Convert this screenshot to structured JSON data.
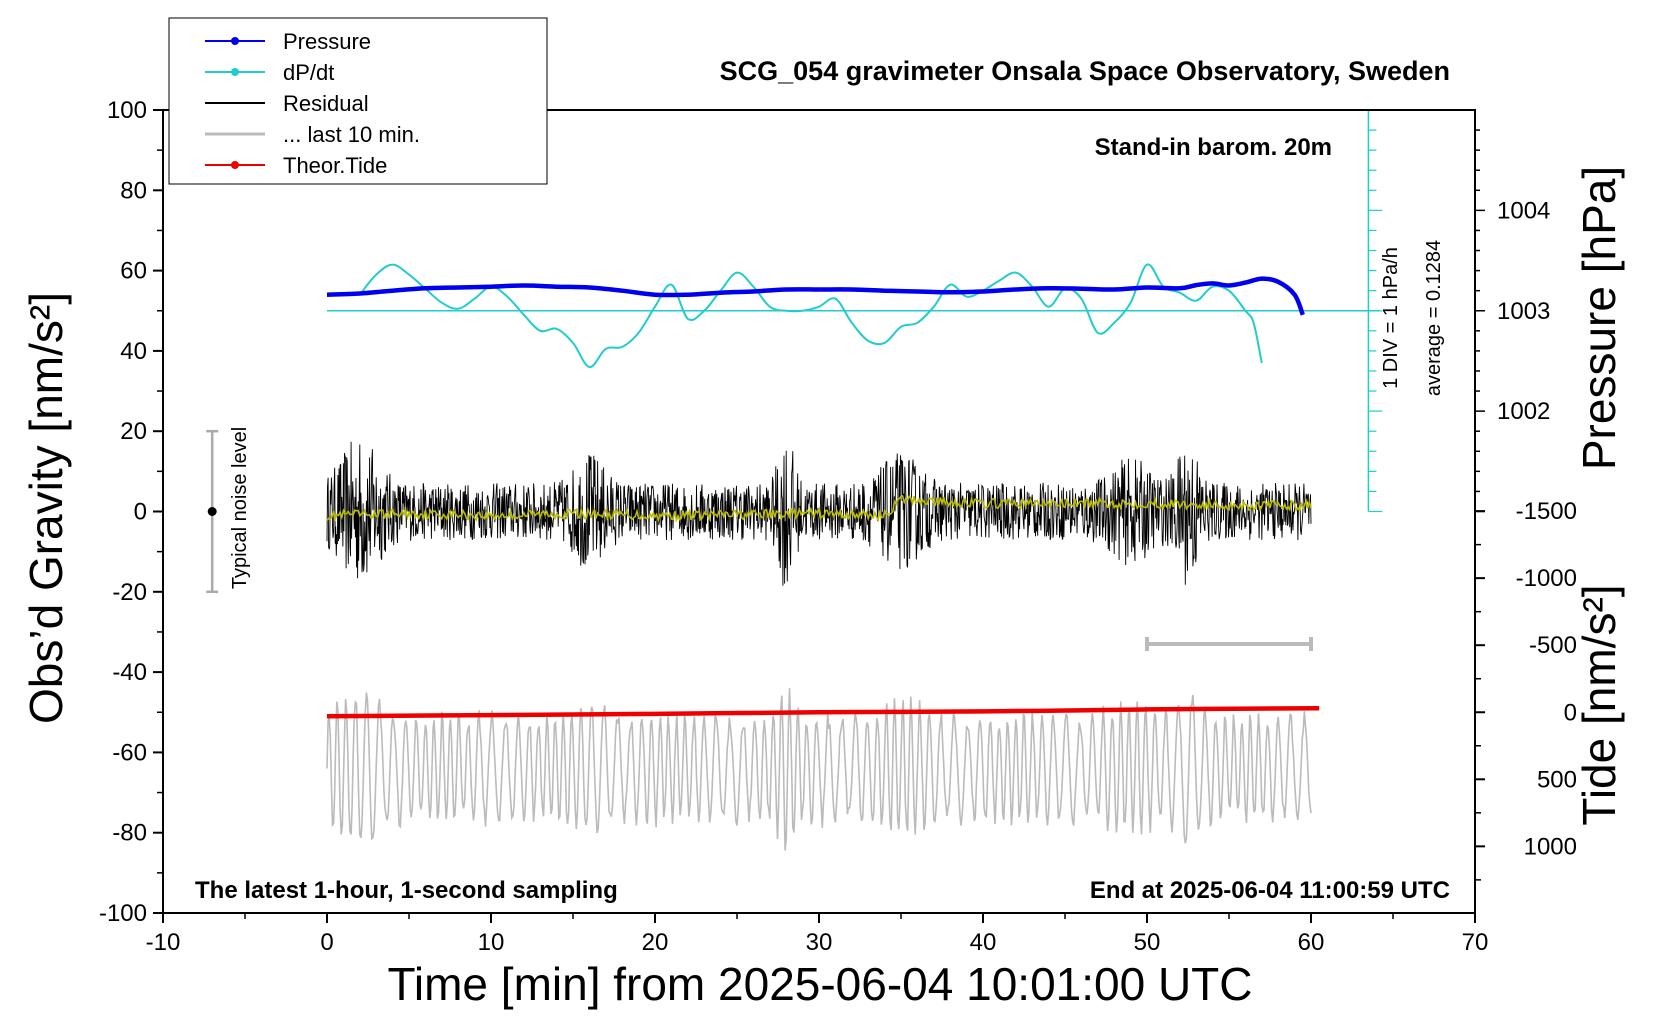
{
  "chart_data": {
    "type": "line",
    "title": "SCG_054 gravimeter Onsala Space Observatory, Sweden",
    "xlabel": "Time [min] from 2025-06-04 10:01:00 UTC",
    "ylabel_left": "Obs’d Gravity [nm/s²]",
    "ylabel_right_pressure": "Pressure [hPa]",
    "ylabel_right_tide": "Tide [nm/s²]",
    "xlim": [
      -10,
      70
    ],
    "ylim": [
      -100,
      100
    ],
    "x_ticks": [
      -10,
      0,
      10,
      20,
      30,
      40,
      50,
      60,
      70
    ],
    "y_ticks": [
      -100,
      -80,
      -60,
      -40,
      -20,
      0,
      20,
      40,
      60,
      80,
      100
    ],
    "pressure_axis": {
      "ticks": [
        1002,
        1003,
        1004
      ]
    },
    "tide_axis": {
      "ticks": [
        -1500,
        -1000,
        -500,
        0,
        500,
        1000
      ]
    },
    "grid": false,
    "legend_position": "top-left",
    "annotations": {
      "top_right": "Stand-in barom. 20m",
      "bottom_left": "The latest 1-hour, 1-second sampling",
      "bottom_right": "End at 2025-06-04 11:00:59 UTC",
      "noise_label": "Typical noise level",
      "div_label": "1 DIV = 1 hPa/h",
      "average_label": "average = 0.1284"
    },
    "series": [
      {
        "name": "Pressure",
        "color": "#0000ee",
        "x": [
          0,
          2,
          4,
          6,
          8,
          10,
          12,
          14,
          16,
          18,
          20,
          22,
          24,
          26,
          28,
          30,
          32,
          34,
          36,
          38,
          40,
          42,
          44,
          46,
          48,
          50,
          52,
          53,
          54,
          55,
          56,
          57,
          58,
          59,
          59.5
        ],
        "y": [
          54,
          54.3,
          55,
          55.6,
          55.8,
          56,
          56.3,
          56,
          55.8,
          55,
          54,
          54,
          54.5,
          54.8,
          55.3,
          55.3,
          55.3,
          55,
          54.8,
          54.6,
          54.8,
          55.3,
          55.6,
          55.5,
          55.3,
          55.8,
          55.6,
          56.4,
          56.8,
          56.3,
          57,
          58,
          57.2,
          54,
          49
        ]
      },
      {
        "name": "dP/dt",
        "color": "#22cccc",
        "x": [
          2,
          3,
          4,
          5,
          6,
          7,
          8,
          9,
          10,
          11,
          12,
          13,
          14,
          15,
          16,
          17,
          18,
          19,
          20,
          21,
          22,
          23,
          24,
          25,
          26,
          27,
          28,
          29,
          30,
          31,
          32,
          33,
          34,
          35,
          36,
          37,
          38,
          39,
          40,
          41,
          42,
          43,
          44,
          45,
          46,
          47,
          48,
          49,
          50,
          51,
          52,
          53,
          54,
          55,
          56,
          56.5,
          57
        ],
        "y": [
          54,
          59,
          61.5,
          59,
          55.5,
          52,
          50.5,
          53,
          56,
          53.5,
          49,
          45,
          45.5,
          42,
          36,
          40.5,
          41,
          44.5,
          51,
          56.5,
          48,
          50,
          55,
          59.5,
          56,
          51,
          50,
          50,
          51,
          53,
          47,
          42.5,
          42,
          46,
          47,
          51,
          56.5,
          53.5,
          55,
          57.5,
          59.5,
          56,
          51,
          55.5,
          53,
          44.5,
          47,
          52,
          61.5,
          56,
          54.5,
          52.5,
          56,
          55,
          50,
          47,
          37
        ]
      },
      {
        "name": "Residual",
        "color": "#000000",
        "x": [
          0,
          60
        ],
        "y": [
          0,
          0
        ]
      },
      {
        "name": "... last 10 min.",
        "color": "#bbbbbb",
        "x": [
          50,
          60
        ],
        "y": [
          -33,
          -33
        ]
      },
      {
        "name": "Theor.Tide",
        "color": "#ee0000",
        "x": [
          0,
          10,
          20,
          30,
          40,
          50,
          60.5
        ],
        "y": [
          -51,
          -50.7,
          -50.4,
          -50,
          -49.8,
          -49.3,
          -49
        ]
      }
    ],
    "residual_running_mean": {
      "name": "",
      "color": "#bbbb00",
      "x": [
        0,
        5,
        10,
        15,
        20,
        25,
        30,
        34,
        35,
        40,
        45,
        50,
        55,
        60
      ],
      "y": [
        -1,
        -0.5,
        -1,
        -0.5,
        -1,
        -0.8,
        -0.5,
        -1,
        3,
        2,
        2,
        2,
        1.5,
        1.5
      ]
    },
    "noise_bar": {
      "x": -7,
      "y_range": [
        -20,
        20
      ],
      "center": 0
    },
    "colors": {
      "pressure": "#0000ee",
      "dpdt": "#22cccc",
      "residual": "#000000",
      "last10": "#bbbbbb",
      "tide": "#ee0000",
      "running_mean": "#bbbb00"
    }
  }
}
